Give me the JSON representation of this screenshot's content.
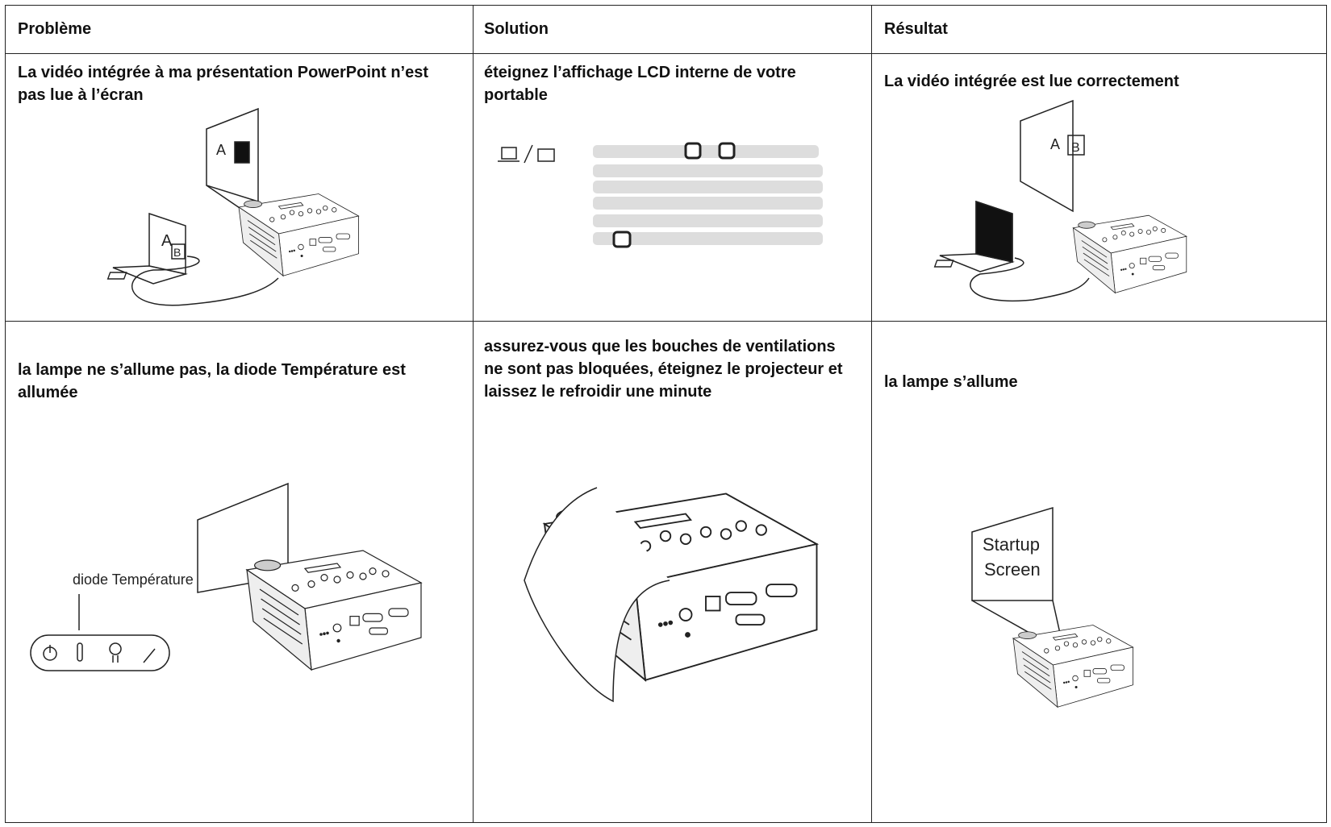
{
  "table": {
    "header": [
      "Problème",
      "Solution",
      "Résultat"
    ],
    "rows": [
      [
        "La vidéo intégrée à ma présentation PowerPoint n’est pas lue à l’écran",
        "éteignez l’affichage LCD interne de votre portable",
        "La vidéo intégrée est lue correctement"
      ],
      [
        "la lampe ne s’allume pas, la diode Température est allumée",
        "assurez-vous que les bouches de ventilations ne sont pas bloquées, éteignez le projecteur et laissez le refroidir une minute",
        "la lampe s’allume"
      ]
    ]
  },
  "illustrations": {
    "problem_screen_label": "A",
    "laptop_label_a": "A",
    "laptop_label_b": "B",
    "result_screen_label_a": "A",
    "result_screen_label_b": "B",
    "led_label": "diode Température",
    "startup_line_1": "Startup",
    "startup_line_2": "Screen"
  }
}
